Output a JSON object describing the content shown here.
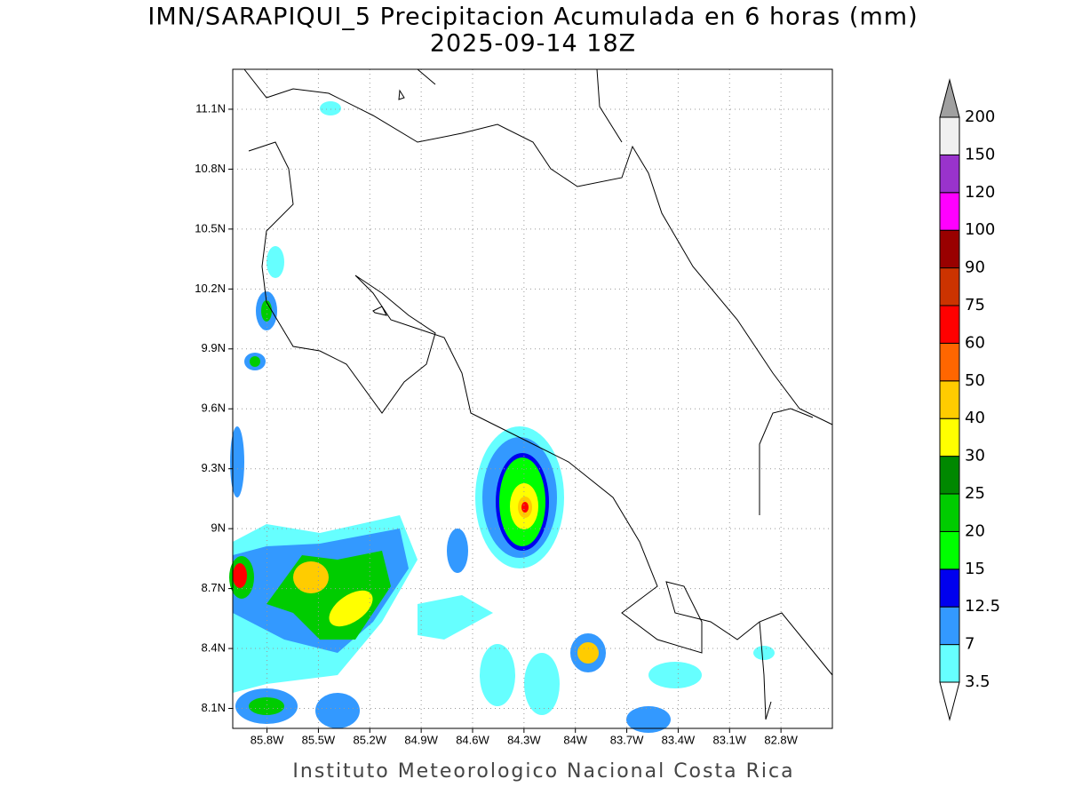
{
  "title": [
    "IMN/SARAPIQUI_5 Precipitacion Acumulada en 6 horas (mm)",
    "2025-09-14 18Z"
  ],
  "map": {
    "xlim": [
      -86.0,
      -82.5
    ],
    "ylim": [
      8.0,
      11.3
    ],
    "xticks": [
      {
        "value": -85.8,
        "label": "85.8W"
      },
      {
        "value": -85.5,
        "label": "85.5W"
      },
      {
        "value": -85.2,
        "label": "85.2W"
      },
      {
        "value": -84.9,
        "label": "84.9W"
      },
      {
        "value": -84.6,
        "label": "84.6W"
      },
      {
        "value": -84.3,
        "label": "84.3W"
      },
      {
        "value": -84.0,
        "label": "84W"
      },
      {
        "value": -83.7,
        "label": "83.7W"
      },
      {
        "value": -83.4,
        "label": "83.4W"
      },
      {
        "value": -83.1,
        "label": "83.1W"
      },
      {
        "value": -82.8,
        "label": "82.8W"
      }
    ],
    "yticks": [
      {
        "value": 8.1,
        "label": "8.1N"
      },
      {
        "value": 8.4,
        "label": "8.4N"
      },
      {
        "value": 8.7,
        "label": "8.7N"
      },
      {
        "value": 9.0,
        "label": "9N"
      },
      {
        "value": 9.3,
        "label": "9.3N"
      },
      {
        "value": 9.6,
        "label": "9.6N"
      },
      {
        "value": 9.9,
        "label": "9.9N"
      },
      {
        "value": 10.2,
        "label": "10.2N"
      },
      {
        "value": 10.5,
        "label": "10.5N"
      },
      {
        "value": 10.8,
        "label": "10.8N"
      },
      {
        "value": 11.1,
        "label": "11.1N"
      }
    ],
    "grid": true
  },
  "colorbar": {
    "levels": [
      3.5,
      7,
      12.5,
      15,
      20,
      25,
      30,
      40,
      50,
      60,
      75,
      90,
      100,
      120,
      150,
      200
    ],
    "colors": [
      "#66ffff",
      "#3399ff",
      "#0000ee",
      "#00ff00",
      "#00cc00",
      "#008800",
      "#ffff00",
      "#ffcc00",
      "#ff6600",
      "#ff0000",
      "#cc3300",
      "#990000",
      "#ff00ff",
      "#9933cc",
      "#f0f0f0"
    ],
    "under_color": "#ffffff",
    "over_color": "#a0a0a0"
  },
  "footer": "Instituto Meteorologico Nacional Costa Rica"
}
